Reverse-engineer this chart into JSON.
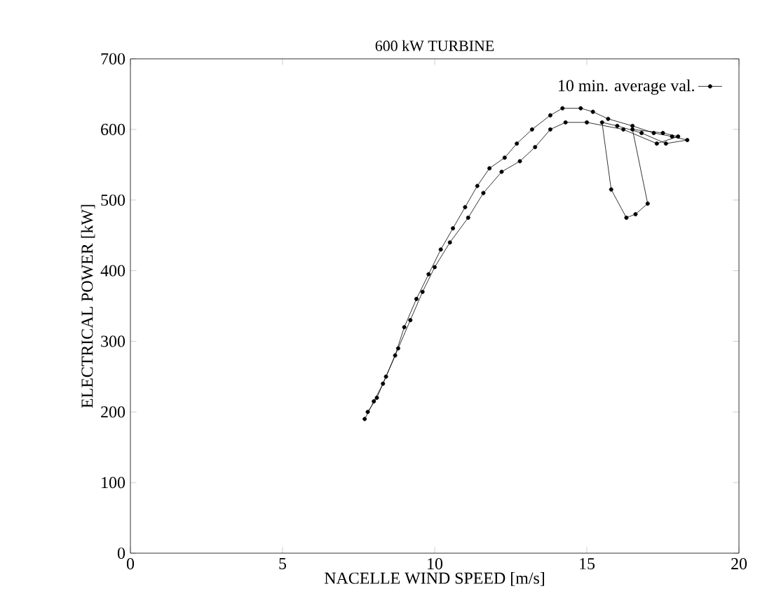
{
  "chart_data": {
    "type": "line",
    "title": "600 kW TURBINE",
    "xlabel": "NACELLE WIND SPEED [m/s]",
    "ylabel": "ELECTRICAL POWER [kW]",
    "xlim": [
      0,
      20
    ],
    "ylim": [
      0,
      700
    ],
    "xticks": [
      0,
      5,
      10,
      15,
      20
    ],
    "yticks": [
      0,
      100,
      200,
      300,
      400,
      500,
      600,
      700
    ],
    "legend": "top right",
    "marker": "circle",
    "line_style": "solid",
    "series": [
      {
        "name": "10 min. average val.",
        "color": "#000000",
        "x": [
          7.7,
          8.0,
          8.3,
          8.7,
          9.0,
          9.4,
          9.8,
          10.2,
          10.6,
          11.0,
          11.4,
          11.8,
          12.3,
          12.7,
          13.2,
          13.8,
          14.2,
          14.8,
          15.2,
          15.7,
          16.5,
          17.2,
          17.8,
          18.3,
          17.6,
          16.8,
          16.0,
          15.5,
          15.8,
          16.3,
          16.6,
          17.0,
          16.5,
          17.5,
          18.0,
          17.3,
          16.2,
          15.0,
          14.3,
          13.8,
          13.3,
          12.8,
          12.2,
          11.6,
          11.1,
          10.5,
          10.0,
          9.6,
          9.2,
          8.8,
          8.4,
          8.1,
          7.8
        ],
        "values": [
          190,
          215,
          240,
          280,
          320,
          360,
          395,
          430,
          460,
          490,
          520,
          545,
          560,
          580,
          600,
          620,
          630,
          630,
          625,
          615,
          605,
          595,
          590,
          585,
          580,
          595,
          605,
          610,
          515,
          475,
          480,
          495,
          600,
          595,
          590,
          580,
          600,
          610,
          610,
          600,
          575,
          555,
          540,
          510,
          475,
          440,
          405,
          370,
          330,
          290,
          250,
          220,
          200
        ]
      }
    ]
  }
}
